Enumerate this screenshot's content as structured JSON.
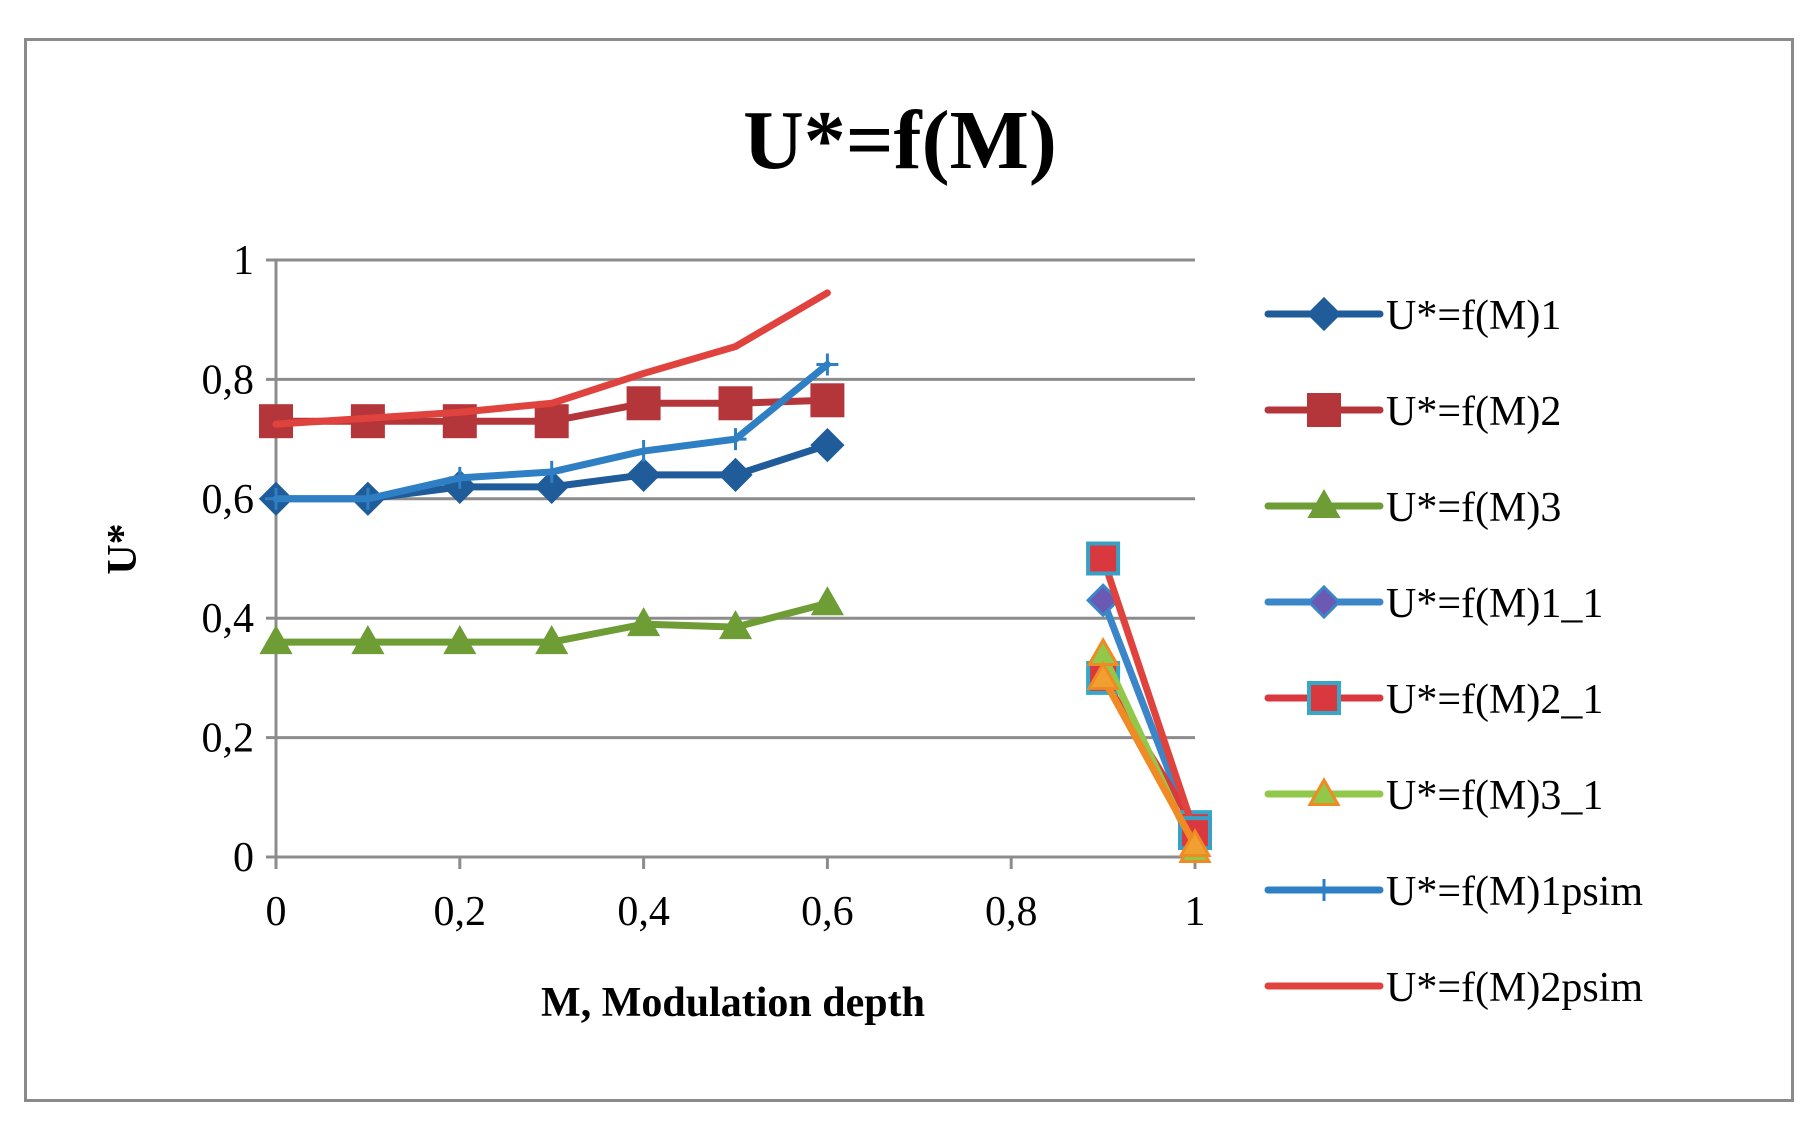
{
  "chart_data": {
    "type": "line",
    "title": "U*=f(M)",
    "xlabel": "M, Modulation depth",
    "ylabel": "U*",
    "xlim": [
      0,
      1
    ],
    "ylim": [
      0,
      1
    ],
    "x_ticks": [
      0,
      0.2,
      0.4,
      0.6,
      0.8,
      1
    ],
    "x_tick_labels": [
      "0",
      "0,2",
      "0,4",
      "0,6",
      "0,8",
      "1"
    ],
    "y_ticks": [
      0,
      0.2,
      0.4,
      0.6,
      0.8,
      1
    ],
    "y_tick_labels": [
      "0",
      "0,2",
      "0,4",
      "0,6",
      "0,8",
      "1"
    ],
    "grid": "horizontal",
    "legend_position": "right",
    "series": [
      {
        "name": "U*=f(M)1",
        "color": "#1f5c99",
        "marker": "diamond",
        "marker_fill": "#1f5c99",
        "marker_stroke": "#1f5c99",
        "x": [
          0,
          0.1,
          0.2,
          0.3,
          0.4,
          0.5,
          0.6
        ],
        "y": [
          0.6,
          0.6,
          0.62,
          0.62,
          0.64,
          0.64,
          0.69
        ]
      },
      {
        "name": "U*=f(M)2",
        "color": "#b5363a",
        "marker": "square",
        "marker_fill": "#b5363a",
        "marker_stroke": "#b5363a",
        "x": [
          0,
          0.1,
          0.2,
          0.3,
          0.4,
          0.5,
          0.6
        ],
        "y": [
          0.73,
          0.73,
          0.73,
          0.73,
          0.76,
          0.76,
          0.765
        ]
      },
      {
        "name": "U*=f(M)3",
        "color": "#6e9c35",
        "marker": "triangle",
        "marker_fill": "#6e9c35",
        "marker_stroke": "#6e9c35",
        "x": [
          0,
          0.1,
          0.2,
          0.3,
          0.4,
          0.5,
          0.6
        ],
        "y": [
          0.36,
          0.36,
          0.36,
          0.36,
          0.39,
          0.385,
          0.425
        ]
      },
      {
        "name": "U*=f(M)1_1",
        "color": "#3b86c8",
        "marker": "diamond",
        "marker_fill": "#6b59b3",
        "marker_stroke": "#3b86c8",
        "x": [
          0.9,
          1
        ],
        "y": [
          0.43,
          0.03
        ]
      },
      {
        "name": "U*=f(M)2_1",
        "color": "#d9393e",
        "marker": "square",
        "marker_fill": "#d9393e",
        "marker_stroke": "#35a8c8",
        "x": [
          0.9,
          1
        ],
        "y": [
          0.3,
          0.05
        ]
      },
      {
        "name": "U*=f(M)3_1",
        "color": "#92c84a",
        "marker": "triangle",
        "marker_fill": "#92c84a",
        "marker_stroke": "#f08a24",
        "x": [
          0.9,
          1
        ],
        "y": [
          0.34,
          0.01
        ]
      },
      {
        "name": "U*=f(M)1psim",
        "color": "#2f7fc4",
        "marker": "plus",
        "marker_fill": "#2f7fc4",
        "marker_stroke": "#2f7fc4",
        "x": [
          0,
          0.1,
          0.2,
          0.3,
          0.4,
          0.5,
          0.6
        ],
        "y": [
          0.6,
          0.6,
          0.635,
          0.645,
          0.68,
          0.7,
          0.825
        ]
      },
      {
        "name": "U*=f(M)2psim",
        "color": "#e0433d",
        "marker": "none",
        "marker_fill": "#e0433d",
        "marker_stroke": "#e0433d",
        "x": [
          0,
          0.1,
          0.2,
          0.3,
          0.4,
          0.5,
          0.6
        ],
        "y": [
          0.725,
          0.735,
          0.745,
          0.76,
          0.81,
          0.855,
          0.945
        ]
      },
      {
        "name": "",
        "color": "#e0433d",
        "marker": "square",
        "marker_fill": "#d9393e",
        "marker_stroke": "#3a9fc4",
        "x": [
          0.9,
          1
        ],
        "y": [
          0.5,
          0.04
        ]
      },
      {
        "name": "",
        "color": "#f08a24",
        "marker": "triangle",
        "marker_fill": "#f0a030",
        "marker_stroke": "#f08a24",
        "x": [
          0.9,
          1
        ],
        "y": [
          0.3,
          0.02
        ]
      }
    ]
  }
}
